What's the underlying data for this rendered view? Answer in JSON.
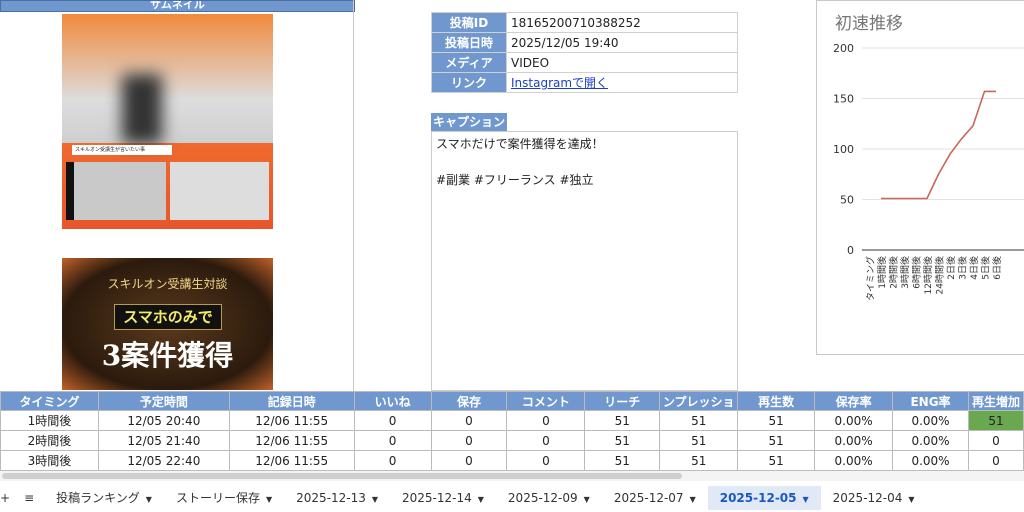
{
  "thumbnail": {
    "header": "サムネイル",
    "image1_caption": "スキルオン受講生が言いたい事",
    "image2": {
      "title": "スキルオン受講生対談",
      "line1": "スマホのみで",
      "line2": "3案件獲得"
    }
  },
  "info": {
    "rows": [
      {
        "label": "投稿ID",
        "value": "18165200710388252"
      },
      {
        "label": "投稿日時",
        "value": "2025/12/05 19:40"
      },
      {
        "label": "メディア",
        "value": "VIDEO"
      },
      {
        "label": "リンク",
        "value": "Instagramで開く"
      }
    ]
  },
  "caption": {
    "label": "キャプション",
    "text": "スマホだけで案件獲得を達成！\n\n#副業 #フリーランス #独立"
  },
  "chart_data": {
    "type": "line",
    "title": "初速推移",
    "categories": [
      "タイミング",
      "1時間後",
      "2時間後",
      "3時間後",
      "6時間後",
      "12時間後",
      "24時間後",
      "2日後",
      "3日後",
      "4日後",
      "5日後",
      "6日後"
    ],
    "values": [
      null,
      51,
      51,
      51,
      51,
      51,
      75,
      95,
      110,
      123,
      157,
      157
    ],
    "ylim": [
      0,
      200
    ],
    "yticks": [
      0,
      50,
      100,
      150,
      200
    ],
    "grid": true,
    "color": "#c9665a"
  },
  "grid": {
    "headers": [
      "タイミング",
      "予定時間",
      "記録日時",
      "いいね",
      "保存",
      "コメント",
      "リーチ",
      "ンプレッショ",
      "再生数",
      "保存率",
      "ENG率",
      "再生増加"
    ],
    "rows": [
      [
        "1時間後",
        "12/05 20:40",
        "12/06 11:55",
        "0",
        "0",
        "0",
        "51",
        "51",
        "51",
        "0.00%",
        "0.00%",
        "51"
      ],
      [
        "2時間後",
        "12/05 21:40",
        "12/06 11:55",
        "0",
        "0",
        "0",
        "51",
        "51",
        "51",
        "0.00%",
        "0.00%",
        "0"
      ],
      [
        "3時間後",
        "12/05 22:40",
        "12/06 11:55",
        "0",
        "0",
        "0",
        "51",
        "51",
        "51",
        "0.00%",
        "0.00%",
        "0"
      ]
    ],
    "highlight_color": "#6aa84f"
  },
  "tabs": {
    "add": "+",
    "menu": "≡",
    "items": [
      "投稿ランキング",
      "ストーリー保存",
      "2025-12-13",
      "2025-12-14",
      "2025-12-09",
      "2025-12-07",
      "2025-12-05",
      "2025-12-04"
    ],
    "active": "2025-12-05"
  }
}
